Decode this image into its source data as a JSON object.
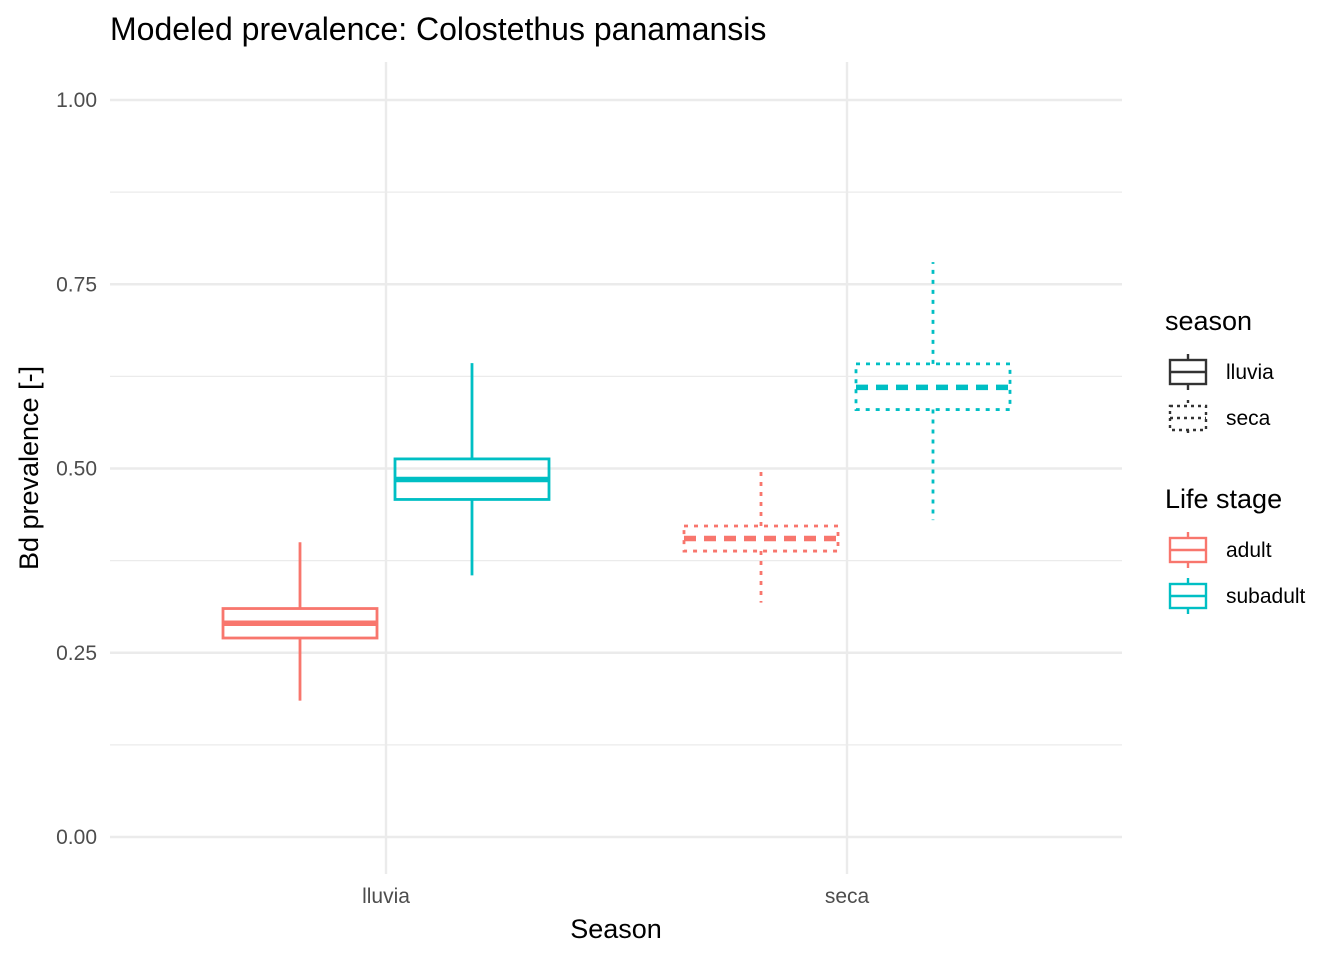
{
  "chart_data": {
    "type": "boxplot",
    "title": "Modeled prevalence: Colostethus panamansis",
    "xlabel": "Season",
    "ylabel": "Bd prevalence [-]",
    "categories": [
      "lluvia",
      "seca"
    ],
    "ylim": [
      -0.05,
      1.05
    ],
    "yticks": [
      0.0,
      0.25,
      0.5,
      0.75,
      1.0
    ],
    "ytick_labels": [
      "0.00",
      "0.25",
      "0.50",
      "0.75",
      "1.00"
    ],
    "grid": true,
    "legend_position": "right",
    "series": [
      {
        "name": "adult",
        "color": "#F8766D",
        "boxes": [
          {
            "category": "lluvia",
            "season": "lluvia",
            "min": 0.185,
            "q1": 0.27,
            "median": 0.29,
            "q3": 0.31,
            "max": 0.4
          },
          {
            "category": "seca",
            "season": "seca",
            "min": 0.318,
            "q1": 0.388,
            "median": 0.405,
            "q3": 0.422,
            "max": 0.5
          }
        ]
      },
      {
        "name": "subadult",
        "color": "#00BFC4",
        "boxes": [
          {
            "category": "lluvia",
            "season": "lluvia",
            "min": 0.355,
            "q1": 0.458,
            "median": 0.485,
            "q3": 0.513,
            "max": 0.643
          },
          {
            "category": "seca",
            "season": "seca",
            "min": 0.43,
            "q1": 0.58,
            "median": 0.61,
            "q3": 0.642,
            "max": 0.78
          }
        ]
      }
    ],
    "legends": [
      {
        "title": "season",
        "entries": [
          {
            "label": "lluvia",
            "linetype": "solid"
          },
          {
            "label": "seca",
            "linetype": "dotted"
          }
        ]
      },
      {
        "title": "Life stage",
        "entries": [
          {
            "label": "adult",
            "color": "#F8766D"
          },
          {
            "label": "subadult",
            "color": "#00BFC4"
          }
        ]
      }
    ]
  }
}
